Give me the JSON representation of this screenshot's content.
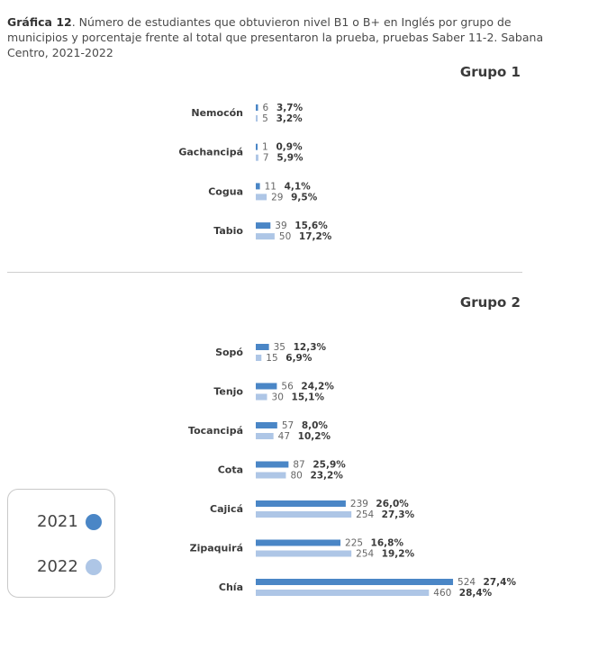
{
  "caption": {
    "lead": "Gráfica 12",
    "text": ". Número de estudiantes que obtuvieron nivel B1 o B+ en Inglés por grupo de municipios y porcentaje frente al total que presentaron la prueba, pruebas Saber 11-2. Sabana Centro, 2021-2022"
  },
  "colors": {
    "y2021": "#4a86c6",
    "y2022": "#aec6e6"
  },
  "legend": [
    {
      "label": "2021",
      "color": "#4a86c6"
    },
    {
      "label": "2022",
      "color": "#aec6e6"
    }
  ],
  "chart_data": [
    {
      "type": "bar",
      "orientation": "horizontal",
      "title": "Grupo 1",
      "categories": [
        "Nemocón",
        "Gachancipá",
        "Cogua",
        "Tabio"
      ],
      "series": [
        {
          "name": "2021",
          "values": [
            6,
            1,
            11,
            39
          ],
          "percent_labels": [
            "3,7%",
            "0,9%",
            "4,1%",
            "15,6%"
          ]
        },
        {
          "name": "2022",
          "values": [
            5,
            7,
            29,
            50
          ],
          "percent_labels": [
            "3,2%",
            "5,9%",
            "9,5%",
            "17,2%"
          ]
        }
      ]
    },
    {
      "type": "bar",
      "orientation": "horizontal",
      "title": "Grupo 2",
      "categories": [
        "Sopó",
        "Tenjo",
        "Tocancipá",
        "Cota",
        "Cajicá",
        "Zipaquirá",
        "Chía"
      ],
      "series": [
        {
          "name": "2021",
          "values": [
            35,
            56,
            57,
            87,
            239,
            225,
            524
          ],
          "percent_labels": [
            "12,3%",
            "24,2%",
            "8,0%",
            "25,9%",
            "26,0%",
            "16,8%",
            "27,4%"
          ]
        },
        {
          "name": "2022",
          "values": [
            15,
            30,
            47,
            80,
            254,
            254,
            460
          ],
          "percent_labels": [
            "6,9%",
            "15,1%",
            "10,2%",
            "23,2%",
            "27,3%",
            "19,2%",
            "28,4%"
          ]
        }
      ]
    }
  ]
}
